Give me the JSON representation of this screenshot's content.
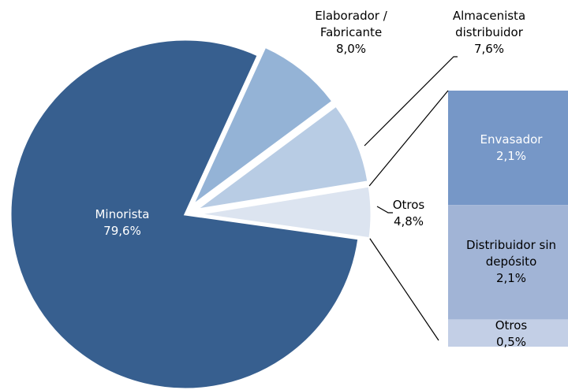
{
  "chart_data": {
    "type": "pie-of-bar",
    "categories": [
      "Minorista",
      "Elaborador / Fabricante",
      "Almacenista distribuidor",
      "Otros"
    ],
    "values": [
      79.6,
      8.0,
      7.6,
      4.8
    ],
    "value_labels": [
      "79,6%",
      "8,0%",
      "7,6%",
      "4,8%"
    ],
    "colors": [
      "#375f8f",
      "#94b3d6",
      "#b8cce4",
      "#dce4f0"
    ],
    "bar": {
      "categories": [
        "Envasador",
        "Distribuidor sin depósito",
        "Otros"
      ],
      "values": [
        2.1,
        2.1,
        0.5
      ],
      "value_labels": [
        "2,1%",
        "2,1%",
        "0,5%"
      ],
      "colors": [
        "#7697c7",
        "#a1b4d6",
        "#c3cfe6"
      ]
    }
  }
}
